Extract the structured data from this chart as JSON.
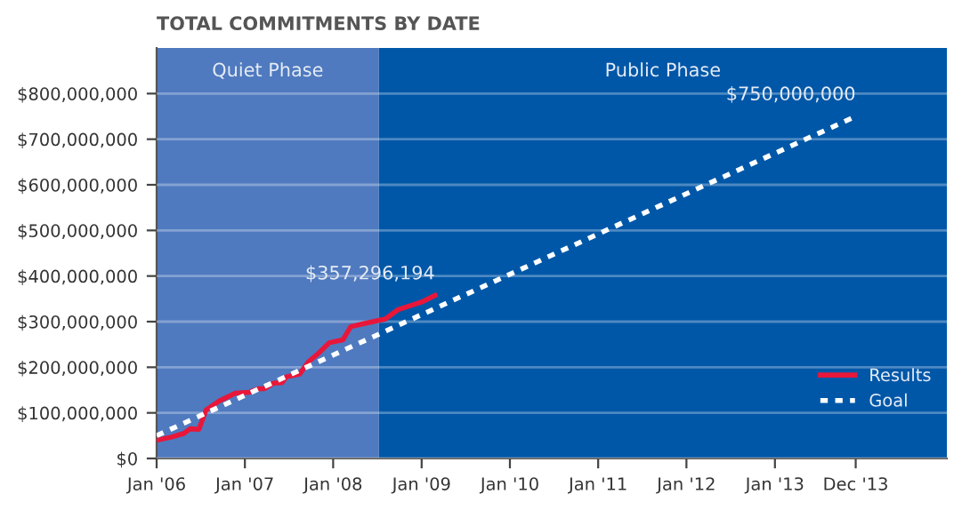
{
  "chart_data": {
    "type": "line",
    "title": "TOTAL COMMITMENTS BY DATE",
    "x": [
      "2006-01-01",
      "2006-03-04",
      "2006-04-24",
      "2006-05-19",
      "2006-06-25",
      "2006-07-24",
      "2006-09-17",
      "2006-11-22",
      "2007-01-19",
      "2007-02-25",
      "2007-03-23",
      "2007-04-28",
      "2007-06-03",
      "2007-06-21",
      "2007-08-15",
      "2007-09-21",
      "2007-10-27",
      "2007-12-17",
      "2008-02-10",
      "2008-03-14",
      "2008-05-11",
      "2008-08-04",
      "2008-09-24",
      "2009-01-01",
      "2009-02-25"
    ],
    "series": [
      {
        "name": "Results",
        "color": "#e8173a",
        "line_style": "solid",
        "values": [
          40000000,
          47000000,
          55000000,
          65000000,
          64000000,
          106000000,
          126000000,
          143000000,
          145000000,
          153000000,
          153000000,
          165000000,
          166000000,
          179000000,
          185000000,
          212000000,
          228000000,
          254000000,
          260000000,
          289000000,
          296000000,
          306000000,
          326000000,
          343000000,
          357296194
        ]
      },
      {
        "name": "Goal",
        "color": "#ffffff",
        "line_style": "dotted",
        "x": [
          "2006-01-01",
          "2013-12-01"
        ],
        "values": [
          50000000,
          750000000
        ]
      }
    ],
    "annotations": [
      {
        "text": "$357,296,194",
        "x": "2009-02-25",
        "y": 357296194
      },
      {
        "text": "$750,000,000",
        "x": "2013-12-01",
        "y": 750000000
      }
    ],
    "bands": [
      {
        "axis": "x",
        "from": "2006-01-01",
        "to": "2008-07-08",
        "label": "Quiet Phase",
        "color": "#4f7abf"
      },
      {
        "axis": "x",
        "from": "2008-07-08",
        "to": "2014-12-13",
        "label": "Public Phase",
        "color": "#0057a8"
      }
    ],
    "xlim": [
      "2006-01-01",
      "2014-12-13"
    ],
    "xticks": [
      {
        "value": "2006-01-01",
        "label": "Jan '06"
      },
      {
        "value": "2007-01-01",
        "label": "Jan '07"
      },
      {
        "value": "2008-01-01",
        "label": "Jan '08"
      },
      {
        "value": "2009-01-01",
        "label": "Jan '09"
      },
      {
        "value": "2010-01-01",
        "label": "Jan '10"
      },
      {
        "value": "2011-01-01",
        "label": "Jan '11"
      },
      {
        "value": "2012-01-01",
        "label": "Jan '12"
      },
      {
        "value": "2013-01-01",
        "label": "Jan '13"
      },
      {
        "value": "2013-12-01",
        "label": "Dec '13"
      }
    ],
    "ylim": [
      0,
      900000000
    ],
    "yticks": [
      {
        "value": 0,
        "label": "$0"
      },
      {
        "value": 100000000,
        "label": "$100,000,000"
      },
      {
        "value": 200000000,
        "label": "$200,000,000"
      },
      {
        "value": 300000000,
        "label": "$300,000,000"
      },
      {
        "value": 400000000,
        "label": "$400,000,000"
      },
      {
        "value": 500000000,
        "label": "$500,000,000"
      },
      {
        "value": 600000000,
        "label": "$600,000,000"
      },
      {
        "value": 700000000,
        "label": "$700,000,000"
      },
      {
        "value": 800000000,
        "label": "$800,000,000"
      }
    ],
    "grid": "y",
    "legend": "bottom right"
  }
}
